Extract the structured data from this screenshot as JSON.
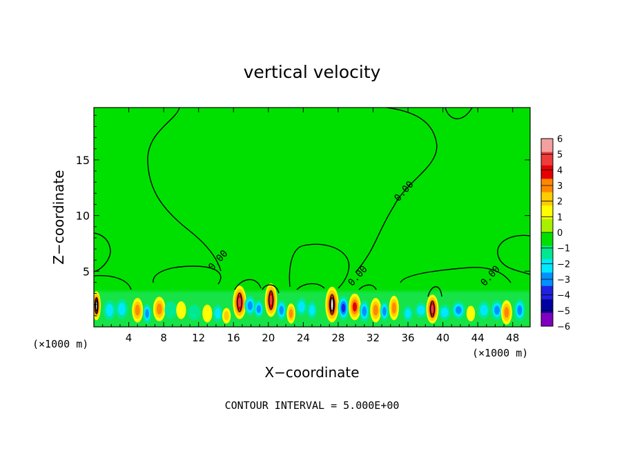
{
  "chart_data": {
    "type": "heatmap",
    "title": "vertical velocity",
    "xlabel": "X−coordinate",
    "ylabel": "Z−coordinate",
    "x_unit_left": "(×1000 m)",
    "x_unit_right": "(×1000 m)",
    "xlim": [
      0,
      50
    ],
    "ylim": [
      0,
      19.7
    ],
    "x_ticks": [
      4,
      8,
      12,
      16,
      20,
      24,
      28,
      32,
      36,
      40,
      44,
      48
    ],
    "y_ticks": [
      5,
      10,
      15
    ],
    "footer": "CONTOUR INTERVAL = 5.000E+00",
    "colorbar": {
      "levels": [
        6,
        5,
        4,
        3,
        2,
        1,
        0,
        -1,
        -2,
        -3,
        -4,
        -5,
        -6
      ],
      "labels": [
        "6",
        "5",
        "4",
        "3",
        "2",
        "1",
        "0",
        "−1",
        "−2",
        "−3",
        "−4",
        "−5",
        "−6"
      ],
      "colors": [
        "#f4a0a0",
        "#ee3c3c",
        "#e60000",
        "#ff8800",
        "#ffcc00",
        "#ffff00",
        "#a8f000",
        "#00e000",
        "#00e890",
        "#00e8ff",
        "#0090ff",
        "#2020e0",
        "#0000a0",
        "#8000c0"
      ]
    },
    "background_color": "#00e000",
    "contour_labels": [
      {
        "text": "0.00",
        "x": 14.5,
        "y": 5.8
      },
      {
        "text": "0.00",
        "x": 30.5,
        "y": 4.4
      },
      {
        "text": "0.00",
        "x": 35.8,
        "y": 12.0
      },
      {
        "text": "0.00",
        "x": 45.7,
        "y": 4.4
      }
    ],
    "cells": [
      {
        "x": 0.3,
        "z": 1.9,
        "v": 5.8,
        "w": 0.35,
        "h": 1.3
      },
      {
        "x": 1.8,
        "z": 1.5,
        "v": -2.5,
        "w": 0.5,
        "h": 0.9
      },
      {
        "x": 3.2,
        "z": 1.6,
        "v": -2.0,
        "w": 0.5,
        "h": 0.9
      },
      {
        "x": 5.0,
        "z": 1.5,
        "v": 3.5,
        "w": 0.45,
        "h": 1.1
      },
      {
        "x": 6.1,
        "z": 1.2,
        "v": -3.5,
        "w": 0.35,
        "h": 0.9
      },
      {
        "x": 7.5,
        "z": 1.6,
        "v": 3.0,
        "w": 0.5,
        "h": 1.1
      },
      {
        "x": 8.8,
        "z": 1.5,
        "v": -1.5,
        "w": 0.5,
        "h": 0.8
      },
      {
        "x": 10.0,
        "z": 1.5,
        "v": 1.5,
        "w": 0.4,
        "h": 0.8
      },
      {
        "x": 11.5,
        "z": 1.3,
        "v": -1.5,
        "w": 0.5,
        "h": 0.7
      },
      {
        "x": 13.0,
        "z": 1.2,
        "v": 1.5,
        "w": 0.4,
        "h": 0.8
      },
      {
        "x": 14.2,
        "z": 1.2,
        "v": -2.0,
        "w": 0.4,
        "h": 0.8
      },
      {
        "x": 15.2,
        "z": 1.0,
        "v": 2.0,
        "w": 0.35,
        "h": 0.7
      },
      {
        "x": 16.7,
        "z": 2.2,
        "v": 5.0,
        "w": 0.55,
        "h": 1.5
      },
      {
        "x": 17.9,
        "z": 1.9,
        "v": -3.0,
        "w": 0.45,
        "h": 0.9
      },
      {
        "x": 18.9,
        "z": 1.6,
        "v": -3.0,
        "w": 0.4,
        "h": 0.8
      },
      {
        "x": 20.3,
        "z": 2.4,
        "v": 5.0,
        "w": 0.5,
        "h": 1.5
      },
      {
        "x": 21.5,
        "z": 1.5,
        "v": -3.5,
        "w": 0.4,
        "h": 0.9
      },
      {
        "x": 22.6,
        "z": 1.2,
        "v": 3.5,
        "w": 0.35,
        "h": 0.9
      },
      {
        "x": 23.8,
        "z": 1.8,
        "v": -2.0,
        "w": 0.45,
        "h": 0.8
      },
      {
        "x": 25.0,
        "z": 1.5,
        "v": -2.5,
        "w": 0.4,
        "h": 0.8
      },
      {
        "x": 27.3,
        "z": 2.0,
        "v": 5.5,
        "w": 0.55,
        "h": 1.6
      },
      {
        "x": 28.6,
        "z": 1.7,
        "v": -4.0,
        "w": 0.45,
        "h": 1.1
      },
      {
        "x": 29.9,
        "z": 1.8,
        "v": 4.0,
        "w": 0.5,
        "h": 1.2
      },
      {
        "x": 31.0,
        "z": 1.4,
        "v": -3.5,
        "w": 0.4,
        "h": 1.0
      },
      {
        "x": 32.3,
        "z": 1.5,
        "v": 3.5,
        "w": 0.45,
        "h": 1.1
      },
      {
        "x": 33.3,
        "z": 1.4,
        "v": -3.5,
        "w": 0.35,
        "h": 0.9
      },
      {
        "x": 34.4,
        "z": 1.7,
        "v": 3.5,
        "w": 0.4,
        "h": 1.1
      },
      {
        "x": 36.0,
        "z": 1.2,
        "v": -2.5,
        "w": 0.4,
        "h": 0.7
      },
      {
        "x": 37.5,
        "z": 1.5,
        "v": -2.0,
        "w": 0.5,
        "h": 0.7
      },
      {
        "x": 38.8,
        "z": 1.6,
        "v": 5.0,
        "w": 0.5,
        "h": 1.3
      },
      {
        "x": 40.2,
        "z": 1.3,
        "v": -2.5,
        "w": 0.5,
        "h": 0.7
      },
      {
        "x": 41.8,
        "z": 1.5,
        "v": -3.0,
        "w": 0.55,
        "h": 0.8
      },
      {
        "x": 43.2,
        "z": 1.2,
        "v": 1.5,
        "w": 0.35,
        "h": 0.7
      },
      {
        "x": 44.7,
        "z": 1.5,
        "v": -2.5,
        "w": 0.5,
        "h": 0.8
      },
      {
        "x": 46.2,
        "z": 1.5,
        "v": -3.0,
        "w": 0.5,
        "h": 0.9
      },
      {
        "x": 47.3,
        "z": 1.3,
        "v": 3.5,
        "w": 0.45,
        "h": 1.1
      },
      {
        "x": 48.8,
        "z": 1.5,
        "v": -3.0,
        "w": 0.45,
        "h": 1.0
      }
    ]
  }
}
